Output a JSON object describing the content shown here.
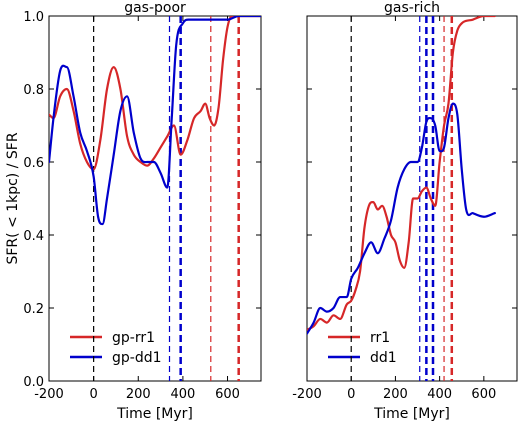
{
  "chart_data": [
    {
      "type": "line",
      "title": "gas-poor",
      "xlabel": "Time [Myr]",
      "ylabel": "SFR( < 1kpc) / SFR",
      "xlim": [
        -200,
        750
      ],
      "ylim": [
        0.0,
        1.0
      ],
      "xticks": [
        -200,
        0,
        200,
        400,
        600
      ],
      "yticks": [
        0.0,
        0.2,
        0.4,
        0.6,
        0.8,
        1.0
      ],
      "ytick_labels": [
        "0.0",
        "0.2",
        "0.4",
        "0.6",
        "0.8",
        "1.0"
      ],
      "legend_position": "lower-left",
      "series": [
        {
          "name": "gp-rr1",
          "color": "#d62728",
          "x": [
            -200,
            -180,
            -150,
            -120,
            -90,
            -60,
            -30,
            0,
            30,
            60,
            90,
            120,
            150,
            180,
            210,
            240,
            270,
            300,
            330,
            360,
            390,
            420,
            450,
            480,
            500,
            520,
            540,
            560,
            580,
            600,
            620,
            650,
            700,
            750
          ],
          "y": [
            0.73,
            0.72,
            0.78,
            0.8,
            0.74,
            0.65,
            0.6,
            0.58,
            0.66,
            0.8,
            0.86,
            0.8,
            0.67,
            0.62,
            0.6,
            0.59,
            0.61,
            0.64,
            0.67,
            0.7,
            0.62,
            0.66,
            0.72,
            0.74,
            0.76,
            0.72,
            0.7,
            0.75,
            0.88,
            0.97,
            1.0,
            1.0,
            1.0,
            1.0
          ]
        },
        {
          "name": "gp-dd1",
          "color": "#0000cc",
          "x": [
            -200,
            -180,
            -150,
            -120,
            -90,
            -60,
            -30,
            0,
            20,
            40,
            60,
            90,
            120,
            150,
            180,
            210,
            240,
            270,
            300,
            330,
            350,
            370,
            400,
            430,
            460,
            500,
            550,
            600,
            650,
            700,
            750
          ],
          "y": [
            0.6,
            0.72,
            0.85,
            0.86,
            0.78,
            0.68,
            0.63,
            0.56,
            0.45,
            0.43,
            0.5,
            0.62,
            0.74,
            0.78,
            0.68,
            0.61,
            0.6,
            0.6,
            0.57,
            0.53,
            0.72,
            0.92,
            0.98,
            0.99,
            0.99,
            0.99,
            0.99,
            0.99,
            1.0,
            1.0,
            1.0
          ]
        }
      ],
      "vlines": [
        {
          "x": 0,
          "color": "#000000",
          "style": "dashed",
          "weight": "thin"
        },
        {
          "x": 340,
          "color": "#0000cc",
          "style": "dashed",
          "weight": "thin"
        },
        {
          "x": 390,
          "color": "#0000cc",
          "style": "dashed",
          "weight": "thick"
        },
        {
          "x": 525,
          "color": "#d62728",
          "style": "dashed",
          "weight": "thin"
        },
        {
          "x": 650,
          "color": "#d62728",
          "style": "dashed",
          "weight": "thick"
        }
      ]
    },
    {
      "type": "line",
      "title": "gas-rich",
      "xlabel": "Time [Myr]",
      "ylabel": "",
      "xlim": [
        -200,
        750
      ],
      "ylim": [
        0.0,
        1.0
      ],
      "xticks": [
        -200,
        0,
        200,
        400,
        600
      ],
      "yticks": [
        0.0,
        0.2,
        0.4,
        0.6,
        0.8,
        1.0
      ],
      "legend_position": "lower-right",
      "series": [
        {
          "name": "rr1",
          "color": "#d62728",
          "x": [
            -200,
            -170,
            -140,
            -110,
            -80,
            -50,
            -20,
            0,
            20,
            40,
            60,
            80,
            100,
            120,
            140,
            160,
            180,
            200,
            220,
            240,
            260,
            280,
            300,
            320,
            340,
            360,
            380,
            400,
            420,
            440,
            460,
            480,
            500,
            550,
            600,
            650
          ],
          "y": [
            0.14,
            0.15,
            0.17,
            0.16,
            0.18,
            0.17,
            0.21,
            0.22,
            0.25,
            0.3,
            0.42,
            0.48,
            0.49,
            0.47,
            0.48,
            0.45,
            0.4,
            0.38,
            0.33,
            0.31,
            0.38,
            0.5,
            0.5,
            0.52,
            0.53,
            0.5,
            0.48,
            0.6,
            0.7,
            0.76,
            0.9,
            0.96,
            0.98,
            0.99,
            1.0,
            1.0
          ]
        },
        {
          "name": "dd1",
          "color": "#0000cc",
          "x": [
            -200,
            -170,
            -140,
            -110,
            -80,
            -50,
            -20,
            0,
            30,
            60,
            90,
            120,
            150,
            180,
            210,
            240,
            270,
            300,
            320,
            340,
            360,
            380,
            400,
            420,
            440,
            460,
            480,
            500,
            520,
            550,
            600,
            650
          ],
          "y": [
            0.13,
            0.16,
            0.2,
            0.19,
            0.2,
            0.23,
            0.23,
            0.28,
            0.31,
            0.35,
            0.38,
            0.35,
            0.39,
            0.44,
            0.53,
            0.58,
            0.6,
            0.6,
            0.64,
            0.71,
            0.72,
            0.7,
            0.63,
            0.64,
            0.72,
            0.76,
            0.73,
            0.58,
            0.47,
            0.46,
            0.45,
            0.46
          ]
        }
      ],
      "vlines": [
        {
          "x": 0,
          "color": "#000000",
          "style": "dashed",
          "weight": "thin"
        },
        {
          "x": 310,
          "color": "#0000cc",
          "style": "dashed",
          "weight": "thin"
        },
        {
          "x": 340,
          "color": "#0000cc",
          "style": "dashed",
          "weight": "thick"
        },
        {
          "x": 370,
          "color": "#0000cc",
          "style": "dashed",
          "weight": "thick"
        },
        {
          "x": 420,
          "color": "#d62728",
          "style": "dashed",
          "weight": "thin"
        },
        {
          "x": 455,
          "color": "#d62728",
          "style": "dashed",
          "weight": "thick"
        }
      ]
    }
  ]
}
